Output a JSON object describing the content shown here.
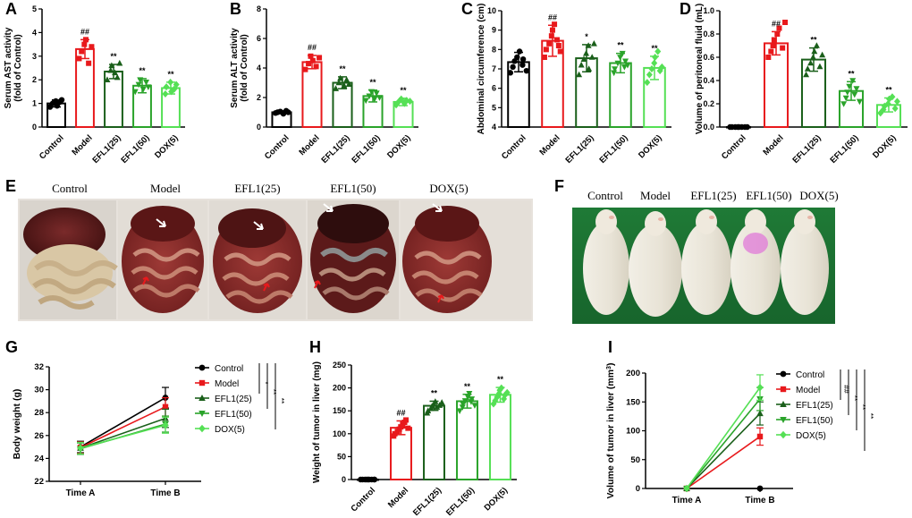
{
  "colors": {
    "control": "#000000",
    "model": "#e8191c",
    "efl25": "#1a5f1a",
    "efl50": "#2aa32a",
    "dox5": "#55e055"
  },
  "panels": {
    "A": "A",
    "B": "B",
    "C": "C",
    "D": "D",
    "E": "E",
    "F": "F",
    "G": "G",
    "H": "H",
    "I": "I"
  },
  "photos": {
    "E_labels": [
      "Control",
      "Model",
      "EFL1(25)",
      "EFL1(50)",
      "DOX(5)"
    ],
    "F_labels": [
      "Control",
      "Model",
      "EFL1(25)",
      "EFL1(50)",
      "DOX(5)"
    ]
  },
  "chart_data": [
    {
      "id": "A",
      "type": "bar",
      "ylabel": "Serum AST activity\n(fold of Control)",
      "categories": [
        "Control",
        "Model",
        "EFL1(25)",
        "EFL1(50)",
        "DOX(5)"
      ],
      "values": [
        1.0,
        3.3,
        2.35,
        1.75,
        1.65
      ],
      "errors": [
        0.15,
        0.4,
        0.3,
        0.3,
        0.25
      ],
      "points": [
        [
          0.85,
          1.0,
          1.1,
          0.9,
          1.05,
          1.15
        ],
        [
          2.9,
          3.2,
          3.5,
          3.7,
          2.7,
          3.4
        ],
        [
          2.0,
          2.4,
          2.6,
          2.3,
          2.1,
          2.7
        ],
        [
          1.5,
          1.8,
          2.0,
          1.6,
          1.9,
          1.7
        ],
        [
          1.4,
          1.7,
          1.9,
          1.5,
          1.6,
          1.8
        ]
      ],
      "annotations": [
        "",
        "##",
        "**",
        "**",
        "**"
      ],
      "ylim": [
        0,
        5
      ],
      "yticks": [
        0,
        1,
        2,
        3,
        4,
        5
      ]
    },
    {
      "id": "B",
      "type": "bar",
      "ylabel": "Serum ALT activity\n(fold of Control)",
      "categories": [
        "Control",
        "Model",
        "EFL1(25)",
        "EFL1(50)",
        "DOX(5)"
      ],
      "values": [
        1.0,
        4.4,
        3.0,
        2.1,
        1.7
      ],
      "errors": [
        0.1,
        0.45,
        0.4,
        0.4,
        0.25
      ],
      "points": [
        [
          0.95,
          1.0,
          1.05,
          0.9,
          1.1,
          1.0
        ],
        [
          3.9,
          4.3,
          4.8,
          4.5,
          4.1,
          4.7
        ],
        [
          2.6,
          3.0,
          3.3,
          2.8,
          3.2,
          2.9
        ],
        [
          1.8,
          2.1,
          2.4,
          1.9,
          2.3,
          2.0
        ],
        [
          1.5,
          1.7,
          1.9,
          1.6,
          1.8,
          1.75
        ]
      ],
      "annotations": [
        "",
        "##",
        "**",
        "**",
        "**"
      ],
      "ylim": [
        0,
        8
      ],
      "yticks": [
        0,
        2,
        4,
        6,
        8
      ]
    },
    {
      "id": "C",
      "type": "bar",
      "ylabel": "Abdominal circumference (cm)",
      "categories": [
        "Control",
        "Model",
        "EFL1(25)",
        "EFL1(50)",
        "DOX(5)"
      ],
      "values": [
        7.35,
        8.45,
        7.55,
        7.3,
        7.05
      ],
      "errors": [
        0.5,
        0.8,
        0.7,
        0.5,
        0.6
      ],
      "points": [
        [
          6.8,
          7.1,
          7.4,
          7.6,
          7.9,
          7.2,
          7.5,
          6.9
        ],
        [
          7.6,
          8.0,
          8.3,
          8.7,
          9.0,
          9.3,
          8.5,
          8.2,
          7.9
        ],
        [
          6.7,
          7.2,
          7.5,
          7.8,
          8.2,
          7.0,
          7.6,
          8.3
        ],
        [
          6.8,
          7.0,
          7.3,
          7.6,
          7.8,
          7.1,
          7.4,
          7.2
        ],
        [
          6.3,
          6.7,
          7.0,
          7.3,
          7.6,
          7.9,
          6.9,
          7.1
        ]
      ],
      "annotations": [
        "",
        "##",
        "*",
        "**",
        "**"
      ],
      "ylim": [
        4,
        10
      ],
      "yticks": [
        4,
        5,
        6,
        7,
        8,
        9,
        10
      ]
    },
    {
      "id": "D",
      "type": "bar",
      "ylabel": "Volume of peritoneal fluid (mL)",
      "categories": [
        "Control",
        "Model",
        "EFL1(25)",
        "EFL1(50)",
        "DOX(5)"
      ],
      "values": [
        0.0,
        0.72,
        0.58,
        0.31,
        0.19
      ],
      "errors": [
        0.01,
        0.1,
        0.1,
        0.08,
        0.06
      ],
      "points": [
        [
          0.0,
          0.0,
          0.0,
          0.0,
          0.0,
          0.0,
          0.0,
          0.0
        ],
        [
          0.6,
          0.65,
          0.7,
          0.75,
          0.8,
          0.85,
          0.68,
          0.9
        ],
        [
          0.45,
          0.5,
          0.55,
          0.6,
          0.65,
          0.7,
          0.52,
          0.62
        ],
        [
          0.2,
          0.25,
          0.3,
          0.35,
          0.4,
          0.28,
          0.33,
          0.22
        ],
        [
          0.12,
          0.15,
          0.18,
          0.2,
          0.24,
          0.26,
          0.16,
          0.22
        ]
      ],
      "annotations": [
        "",
        "##",
        "**",
        "**",
        "**"
      ],
      "ylim": [
        0,
        1.0
      ],
      "yticks": [
        0.0,
        0.2,
        0.4,
        0.6,
        0.8,
        1.0
      ]
    },
    {
      "id": "G",
      "type": "line",
      "ylabel": "Body weight (g)",
      "categories": [
        "Time A",
        "Time B"
      ],
      "series": [
        {
          "name": "Control",
          "values": [
            25.0,
            29.3
          ],
          "errors": [
            0.5,
            0.9
          ],
          "marker": "circle"
        },
        {
          "name": "Model",
          "values": [
            24.95,
            28.5
          ],
          "errors": [
            0.5,
            0.8
          ],
          "marker": "square"
        },
        {
          "name": "EFL1(25)",
          "values": [
            24.9,
            27.5
          ],
          "errors": [
            0.5,
            0.8
          ],
          "marker": "triangle"
        },
        {
          "name": "EFL1(50)",
          "values": [
            24.85,
            27.0
          ],
          "errors": [
            0.5,
            0.7
          ],
          "marker": "triangle-down"
        },
        {
          "name": "DOX(5)",
          "values": [
            24.9,
            26.9
          ],
          "errors": [
            0.5,
            0.7
          ],
          "marker": "diamond"
        }
      ],
      "ylim": [
        22,
        32
      ],
      "yticks": [
        22,
        24,
        26,
        28,
        30,
        32
      ],
      "significance": [
        "*",
        "**",
        "**"
      ]
    },
    {
      "id": "H",
      "type": "bar",
      "ylabel": "Weight of tumor in liver (mg)",
      "categories": [
        "Control",
        "Model",
        "EFL1(25)",
        "EFL1(50)",
        "DOX(5)"
      ],
      "values": [
        0,
        113,
        161,
        171,
        185
      ],
      "errors": [
        1,
        15,
        10,
        15,
        16
      ],
      "points": [
        [
          0,
          0,
          0,
          0,
          0,
          0,
          0,
          0,
          0
        ],
        [
          95,
          100,
          105,
          110,
          115,
          120,
          125,
          130,
          112
        ],
        [
          145,
          150,
          155,
          160,
          165,
          170,
          158,
          162,
          168
        ],
        [
          150,
          158,
          165,
          172,
          180,
          188,
          170,
          176,
          162
        ],
        [
          165,
          172,
          180,
          188,
          195,
          200,
          176,
          184,
          190
        ]
      ],
      "annotations": [
        "",
        "##",
        "**",
        "**",
        "**"
      ],
      "ylim": [
        0,
        250
      ],
      "yticks": [
        0,
        50,
        100,
        150,
        200,
        250
      ]
    },
    {
      "id": "I",
      "type": "line",
      "ylabel": "Volume of tumor in liver (mm",
      "ylabel_sup": "3",
      "ylabel_close": ")",
      "categories": [
        "Time A",
        "Time B"
      ],
      "series": [
        {
          "name": "Control",
          "values": [
            0,
            0
          ],
          "errors": [
            0,
            0
          ],
          "marker": "circle"
        },
        {
          "name": "Model",
          "values": [
            0,
            90
          ],
          "errors": [
            0,
            15
          ],
          "marker": "square"
        },
        {
          "name": "EFL1(25)",
          "values": [
            0,
            130
          ],
          "errors": [
            0,
            20
          ],
          "marker": "triangle"
        },
        {
          "name": "EFL1(50)",
          "values": [
            0,
            155
          ],
          "errors": [
            0,
            20
          ],
          "marker": "triangle-down"
        },
        {
          "name": "DOX(5)",
          "values": [
            0,
            175
          ],
          "errors": [
            0,
            22
          ],
          "marker": "diamond"
        }
      ],
      "ylim": [
        0,
        200
      ],
      "yticks": [
        0,
        50,
        100,
        150,
        200
      ],
      "significance": [
        "##",
        "**",
        "**",
        "**"
      ]
    }
  ]
}
